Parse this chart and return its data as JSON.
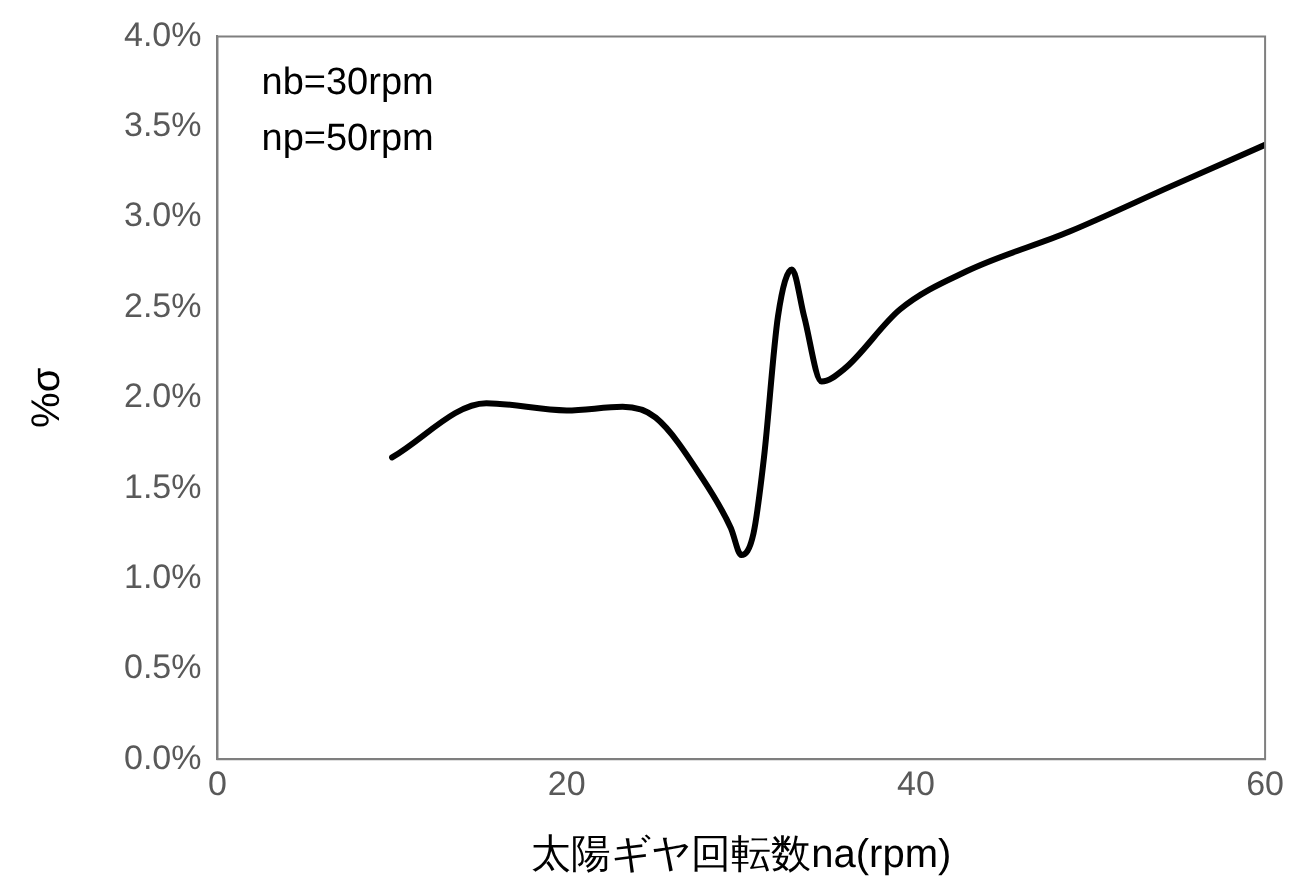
{
  "chart_data": {
    "type": "line",
    "xlabel": "太陽ギヤ回転数na(rpm)",
    "ylabel": "%σ",
    "x": [
      10,
      15.4,
      20,
      23.2,
      25.1,
      27.8,
      29.4,
      30,
      30.7,
      31.3,
      32.1,
      32.9,
      33.6,
      34.6,
      35.9,
      39.1,
      42.9,
      48.8,
      54.6,
      60
    ],
    "series": [
      {
        "color": "#000000",
        "values": [
          1.67,
          1.97,
          1.93,
          1.95,
          1.89,
          1.55,
          1.28,
          1.13,
          1.25,
          1.67,
          2.45,
          2.71,
          2.45,
          2.09,
          2.16,
          2.49,
          2.7,
          2.92,
          3.17,
          3.4
        ]
      }
    ],
    "xlim": [
      0,
      60
    ],
    "xticks": [
      0,
      20,
      40,
      60
    ],
    "ylim": [
      0,
      4
    ],
    "yticks": [
      {
        "value": 0,
        "label": "0.0%"
      },
      {
        "value": 0.5,
        "label": "0.5%"
      },
      {
        "value": 1,
        "label": "1.0%"
      },
      {
        "value": 1.5,
        "label": "1.5%"
      },
      {
        "value": 2,
        "label": "2.0%"
      },
      {
        "value": 2.5,
        "label": "2.5%"
      },
      {
        "value": 3,
        "label": "3.0%"
      },
      {
        "value": 3.5,
        "label": "3.5%"
      },
      {
        "value": 4,
        "label": "4.0%"
      }
    ],
    "grid": false,
    "legend": false,
    "marker": "none",
    "line_style": "solid",
    "annotations": [
      "nb=30rpm",
      "np=50rpm"
    ]
  }
}
